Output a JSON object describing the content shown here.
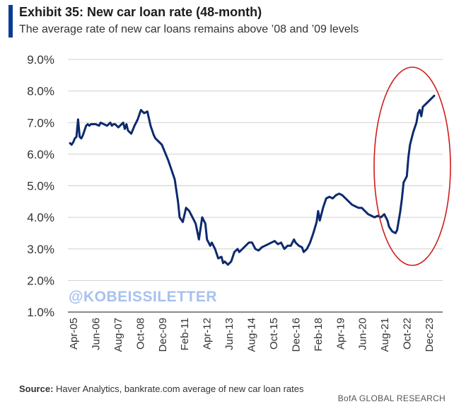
{
  "header": {
    "title": "Exhibit 35: New car loan rate (48-month)",
    "subtitle": "The average rate of new car loans remains above ’08 and ’09 levels"
  },
  "footer": {
    "source_label": "Source:",
    "source_text": "Haver Analytics, bankrate.com average of new car loan rates",
    "brand": "BofA GLOBAL RESEARCH"
  },
  "watermark": "@KOBEISSILETTER",
  "colors": {
    "line": "#0d2a6e",
    "accent": "#0a3e94",
    "highlight": "#d11b1b",
    "watermark": "#a8c1ee",
    "grid": "#cfcfcf"
  },
  "chart_data": {
    "type": "line",
    "title": "Exhibit 35: New car loan rate (48-month)",
    "ylim": [
      1.0,
      9.0
    ],
    "y_ticks": [
      "1.0%",
      "2.0%",
      "3.0%",
      "4.0%",
      "5.0%",
      "6.0%",
      "7.0%",
      "8.0%",
      "9.0%"
    ],
    "x_ticks": [
      "Apr-05",
      "Jun-06",
      "Aug-07",
      "Oct-08",
      "Dec-09",
      "Feb-11",
      "Apr-12",
      "Jun-13",
      "Aug-14",
      "Oct-15",
      "Dec-16",
      "Feb-18",
      "Apr-19",
      "Jun-20",
      "Aug-21",
      "Oct-22",
      "Dec-23"
    ],
    "grid": "horizontal",
    "highlight": "red ellipse around Aug-21 to Dec-23",
    "series": [
      {
        "points": [
          [
            "2005-04",
            6.35
          ],
          [
            "2005-05",
            6.3
          ],
          [
            "2005-06",
            6.38
          ],
          [
            "2005-07",
            6.5
          ],
          [
            "2005-08",
            6.55
          ],
          [
            "2005-09",
            7.1
          ],
          [
            "2005-10",
            6.55
          ],
          [
            "2005-11",
            6.5
          ],
          [
            "2005-12",
            6.6
          ],
          [
            "2006-01",
            6.75
          ],
          [
            "2006-02",
            6.9
          ],
          [
            "2006-03",
            6.95
          ],
          [
            "2006-04",
            6.9
          ],
          [
            "2006-05",
            6.95
          ],
          [
            "2006-06",
            6.95
          ],
          [
            "2006-08",
            6.95
          ],
          [
            "2006-10",
            6.9
          ],
          [
            "2006-11",
            7.0
          ],
          [
            "2007-01",
            6.95
          ],
          [
            "2007-03",
            6.9
          ],
          [
            "2007-05",
            7.0
          ],
          [
            "2007-06",
            6.9
          ],
          [
            "2007-07",
            6.95
          ],
          [
            "2007-08",
            6.95
          ],
          [
            "2007-10",
            6.85
          ],
          [
            "2007-12",
            6.95
          ],
          [
            "2008-01",
            7.0
          ],
          [
            "2008-02",
            6.8
          ],
          [
            "2008-03",
            6.95
          ],
          [
            "2008-04",
            6.75
          ],
          [
            "2008-06",
            6.65
          ],
          [
            "2008-08",
            6.9
          ],
          [
            "2008-10",
            7.1
          ],
          [
            "2008-12",
            7.4
          ],
          [
            "2009-02",
            7.3
          ],
          [
            "2009-04",
            7.35
          ],
          [
            "2009-06",
            6.9
          ],
          [
            "2009-08",
            6.6
          ],
          [
            "2009-09",
            6.5
          ],
          [
            "2009-11",
            6.4
          ],
          [
            "2010-01",
            6.3
          ],
          [
            "2010-03",
            6.05
          ],
          [
            "2010-05",
            5.8
          ],
          [
            "2010-07",
            5.5
          ],
          [
            "2010-09",
            5.2
          ],
          [
            "2010-11",
            4.5
          ],
          [
            "2010-12",
            4.0
          ],
          [
            "2011-02",
            3.85
          ],
          [
            "2011-04",
            4.3
          ],
          [
            "2011-06",
            4.2
          ],
          [
            "2011-07",
            4.1
          ],
          [
            "2011-09",
            3.9
          ],
          [
            "2011-10",
            3.8
          ],
          [
            "2011-12",
            3.3
          ],
          [
            "2012-02",
            4.0
          ],
          [
            "2012-04",
            3.8
          ],
          [
            "2012-05",
            3.3
          ],
          [
            "2012-07",
            3.1
          ],
          [
            "2012-08",
            3.2
          ],
          [
            "2012-10",
            3.0
          ],
          [
            "2012-12",
            2.7
          ],
          [
            "2013-02",
            2.75
          ],
          [
            "2013-03",
            2.55
          ],
          [
            "2013-04",
            2.6
          ],
          [
            "2013-06",
            2.5
          ],
          [
            "2013-08",
            2.6
          ],
          [
            "2013-10",
            2.9
          ],
          [
            "2013-12",
            3.0
          ],
          [
            "2014-01",
            2.9
          ],
          [
            "2014-03",
            3.0
          ],
          [
            "2014-05",
            3.1
          ],
          [
            "2014-07",
            3.2
          ],
          [
            "2014-09",
            3.2
          ],
          [
            "2014-11",
            3.0
          ],
          [
            "2015-01",
            2.95
          ],
          [
            "2015-03",
            3.05
          ],
          [
            "2015-05",
            3.1
          ],
          [
            "2015-07",
            3.15
          ],
          [
            "2015-09",
            3.2
          ],
          [
            "2015-11",
            3.25
          ],
          [
            "2016-01",
            3.15
          ],
          [
            "2016-03",
            3.2
          ],
          [
            "2016-05",
            3.0
          ],
          [
            "2016-07",
            3.1
          ],
          [
            "2016-09",
            3.1
          ],
          [
            "2016-11",
            3.3
          ],
          [
            "2016-12",
            3.2
          ],
          [
            "2017-02",
            3.1
          ],
          [
            "2017-04",
            3.05
          ],
          [
            "2017-05",
            2.9
          ],
          [
            "2017-07",
            3.0
          ],
          [
            "2017-09",
            3.2
          ],
          [
            "2017-11",
            3.5
          ],
          [
            "2018-01",
            3.85
          ],
          [
            "2018-02",
            4.2
          ],
          [
            "2018-03",
            3.9
          ],
          [
            "2018-05",
            4.3
          ],
          [
            "2018-07",
            4.6
          ],
          [
            "2018-09",
            4.65
          ],
          [
            "2018-11",
            4.6
          ],
          [
            "2019-01",
            4.7
          ],
          [
            "2019-03",
            4.75
          ],
          [
            "2019-05",
            4.7
          ],
          [
            "2019-07",
            4.6
          ],
          [
            "2019-09",
            4.5
          ],
          [
            "2019-11",
            4.4
          ],
          [
            "2020-01",
            4.35
          ],
          [
            "2020-03",
            4.3
          ],
          [
            "2020-05",
            4.3
          ],
          [
            "2020-07",
            4.2
          ],
          [
            "2020-09",
            4.1
          ],
          [
            "2020-11",
            4.05
          ],
          [
            "2021-01",
            4.0
          ],
          [
            "2021-03",
            4.05
          ],
          [
            "2021-05",
            4.0
          ],
          [
            "2021-07",
            4.1
          ],
          [
            "2021-09",
            3.9
          ],
          [
            "2021-10",
            3.7
          ],
          [
            "2021-12",
            3.55
          ],
          [
            "2022-02",
            3.5
          ],
          [
            "2022-03",
            3.6
          ],
          [
            "2022-05",
            4.2
          ],
          [
            "2022-06",
            4.6
          ],
          [
            "2022-07",
            5.1
          ],
          [
            "2022-09",
            5.3
          ],
          [
            "2022-10",
            5.9
          ],
          [
            "2022-11",
            6.3
          ],
          [
            "2023-01",
            6.7
          ],
          [
            "2023-03",
            7.0
          ],
          [
            "2023-04",
            7.3
          ],
          [
            "2023-05",
            7.4
          ],
          [
            "2023-06",
            7.2
          ],
          [
            "2023-07",
            7.5
          ],
          [
            "2023-09",
            7.6
          ],
          [
            "2023-11",
            7.7
          ],
          [
            "2024-01",
            7.8
          ],
          [
            "2024-02",
            7.85
          ]
        ]
      }
    ]
  }
}
